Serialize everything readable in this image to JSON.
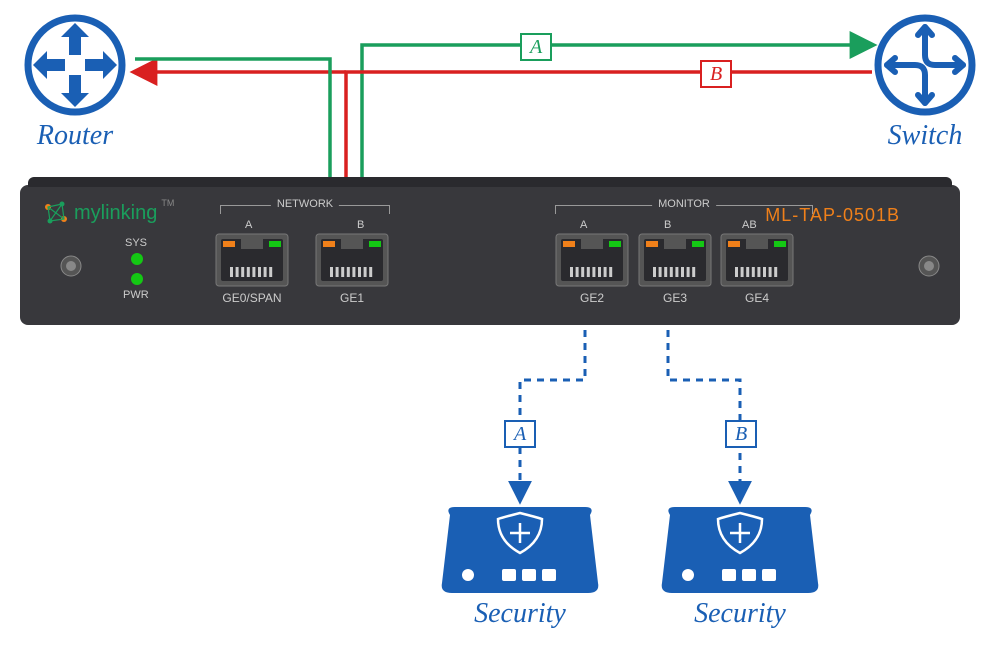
{
  "router": {
    "label": "Router",
    "color": "#1a5fb4"
  },
  "switch": {
    "label": "Switch",
    "color": "#1a5fb4"
  },
  "security1": {
    "label": "Security",
    "color": "#1a5fb4"
  },
  "security2": {
    "label": "Security",
    "color": "#1a5fb4"
  },
  "pathA": {
    "label": "A",
    "color": "#1a9e5c",
    "border": "#1a9e5c"
  },
  "pathB": {
    "label": "B",
    "color": "#d92020",
    "border": "#d92020"
  },
  "monA": {
    "label": "A",
    "color": "#1a5fb4",
    "border": "#1a5fb4"
  },
  "monB": {
    "label": "B",
    "color": "#1a5fb4",
    "border": "#1a5fb4"
  },
  "device": {
    "brand": "mylinking",
    "model": "ML-TAP-0501B",
    "model_color": "#f0801a",
    "chassis_color": "#38383c",
    "sys_label": "SYS",
    "pwr_label": "PWR",
    "led_color": "#14c814",
    "network_group": "NETWORK",
    "monitor_group": "MONITOR",
    "port_frame": "#555555",
    "port_body": "#2a2a2e",
    "led_orange": "#f0801a",
    "led_green": "#14c814",
    "pin_color": "#cccccc",
    "ports": [
      {
        "label": "GE0/SPAN",
        "letter": "A"
      },
      {
        "label": "GE1",
        "letter": "B"
      },
      {
        "label": "GE2",
        "letter": "A"
      },
      {
        "label": "GE3",
        "letter": "B"
      },
      {
        "label": "GE4",
        "letter": "AB"
      }
    ]
  }
}
